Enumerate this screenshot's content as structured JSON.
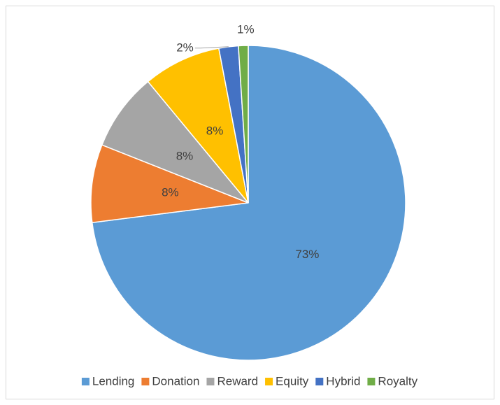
{
  "chart_data": {
    "type": "pie",
    "categories": [
      "Lending",
      "Donation",
      "Reward",
      "Equity",
      "Hybrid",
      "Royalty"
    ],
    "values": [
      73,
      8,
      8,
      8,
      2,
      1
    ],
    "value_labels": [
      "73%",
      "8%",
      "8%",
      "8%",
      "2%",
      "1%"
    ],
    "colors": [
      "#5b9bd5",
      "#ed7d31",
      "#a5a5a5",
      "#ffc000",
      "#4472c4",
      "#70ad47"
    ],
    "legend": "bottom"
  }
}
